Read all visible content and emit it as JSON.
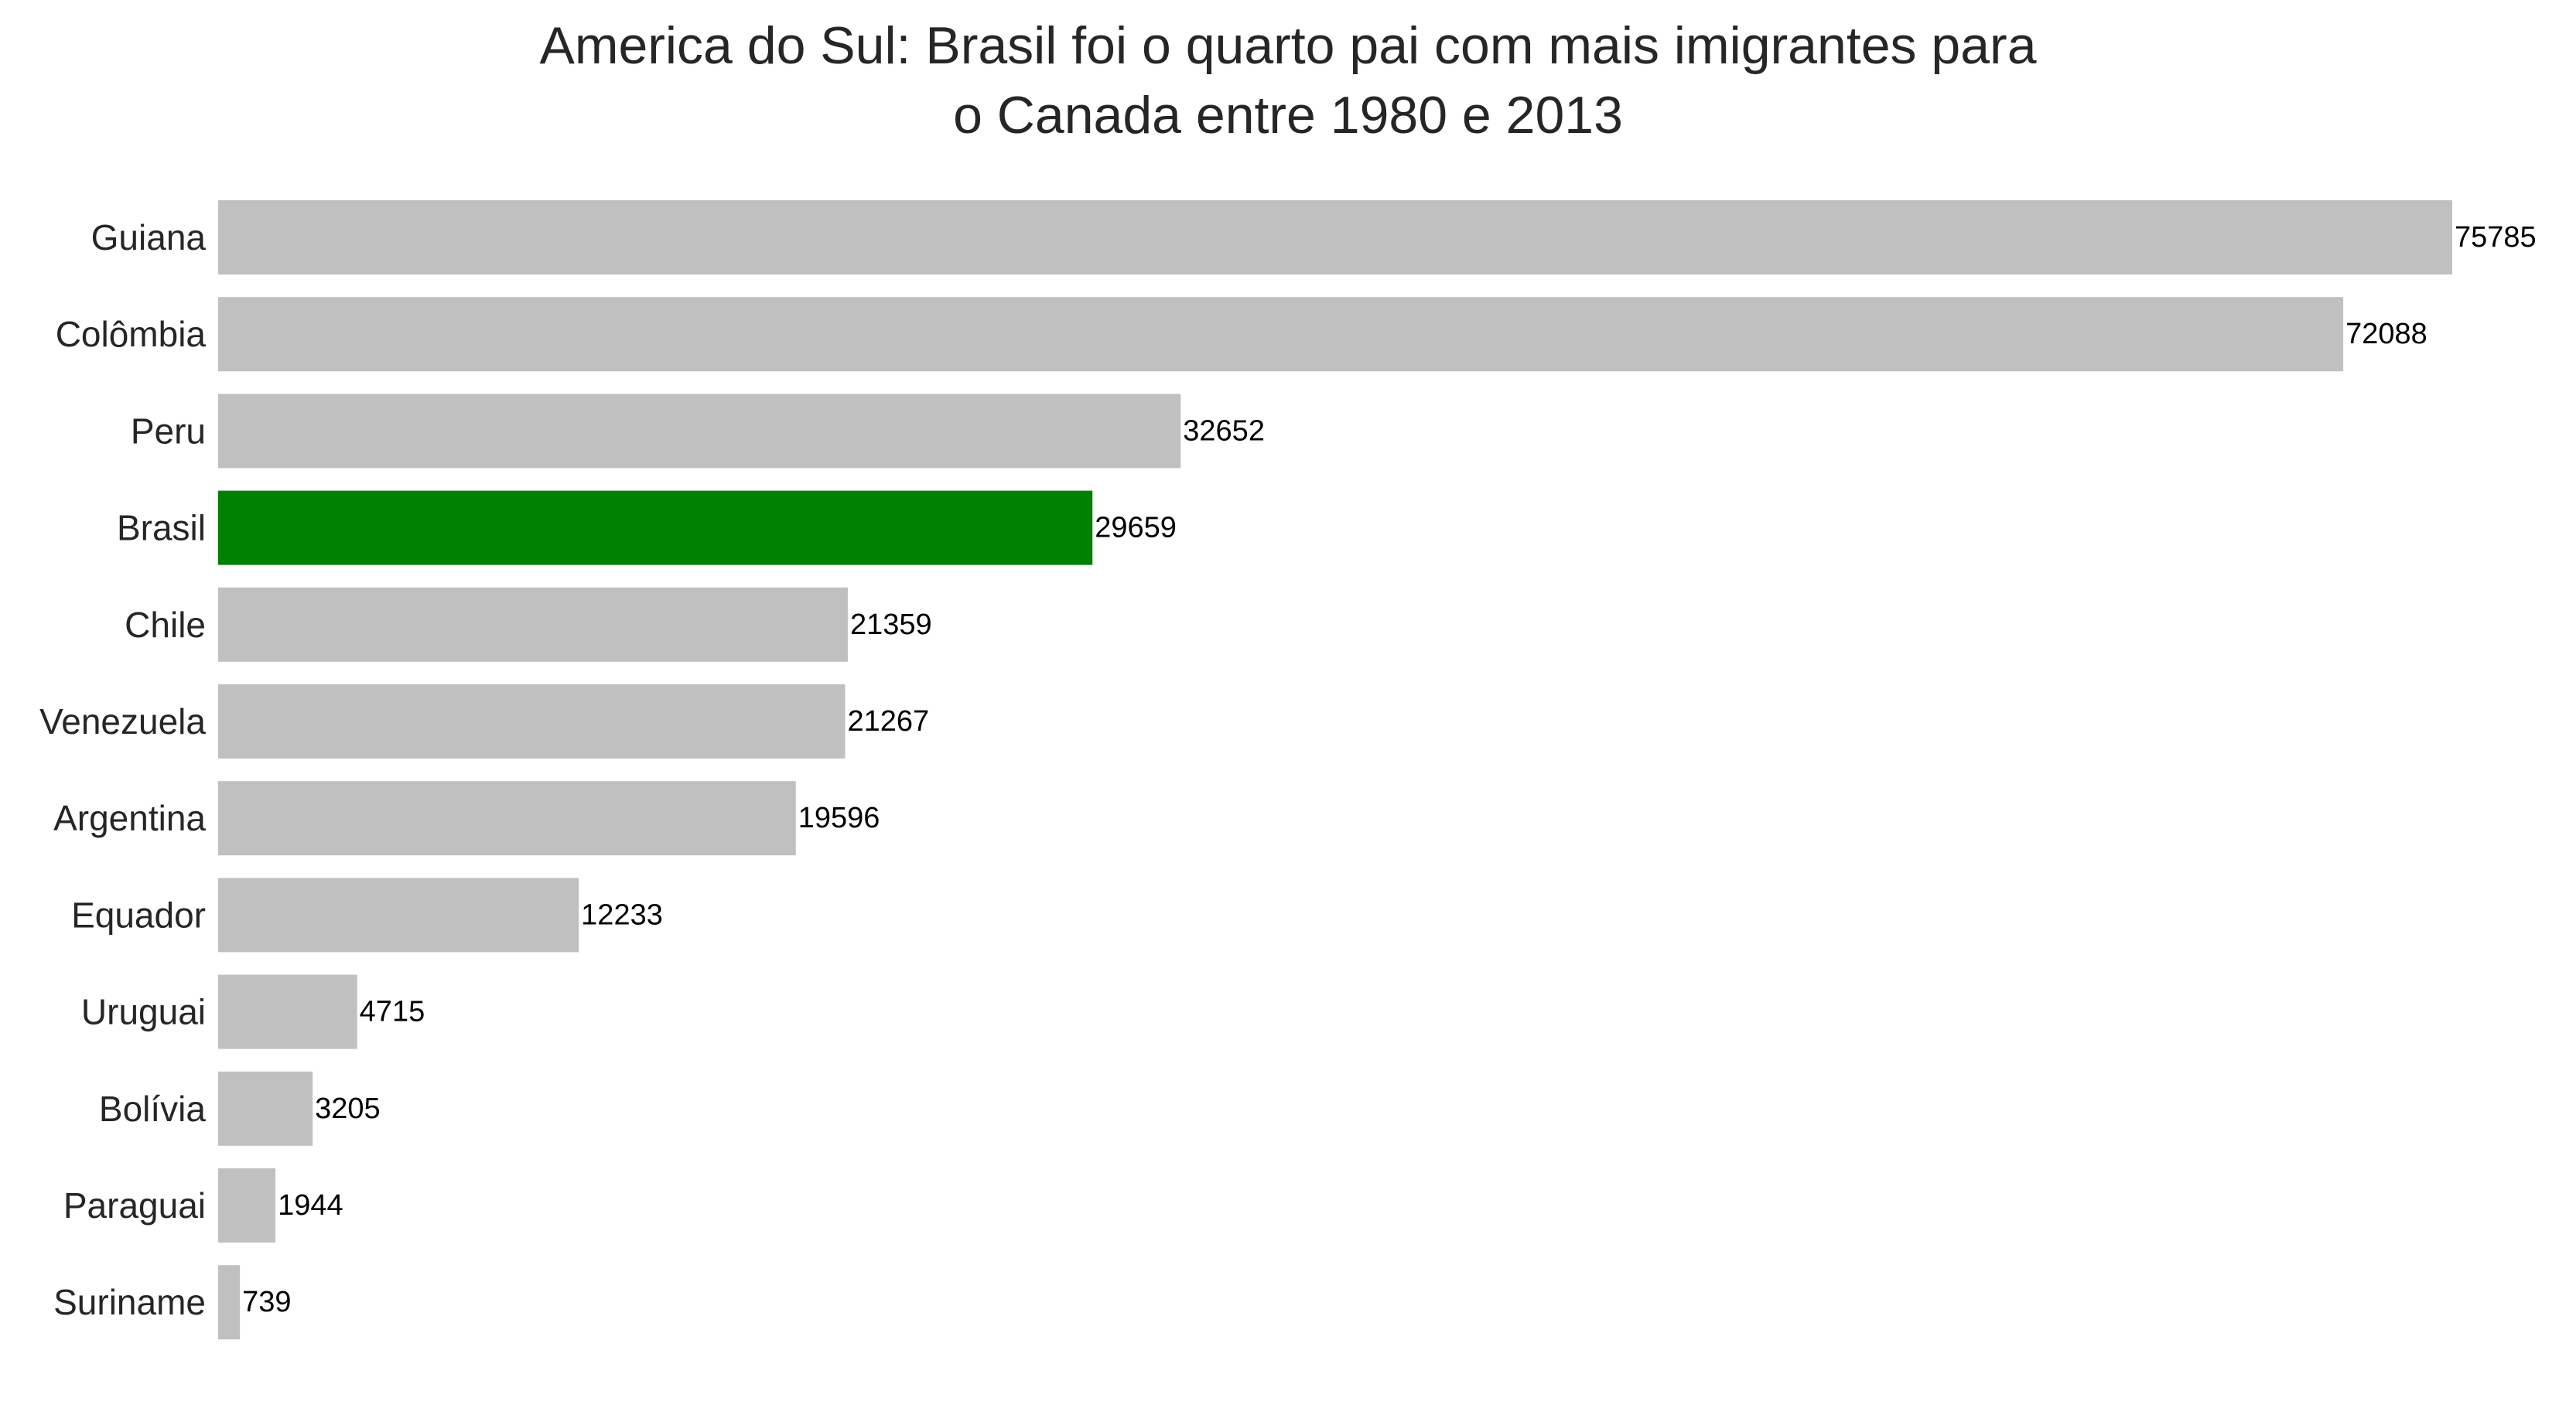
{
  "chart_data": {
    "type": "bar",
    "orientation": "horizontal",
    "title_lines": [
      "America do Sul: Brasil foi o quarto pai com mais imigrantes para",
      "o Canada entre 1980 e 2013"
    ],
    "categories": [
      "Guiana",
      "Colômbia",
      "Peru",
      "Brasil",
      "Chile",
      "Venezuela",
      "Argentina",
      "Equador",
      "Uruguai",
      "Bolívia",
      "Paraguai",
      "Suriname"
    ],
    "values": [
      75785,
      72088,
      32652,
      29659,
      21359,
      21267,
      19596,
      12233,
      4715,
      3205,
      1944,
      739
    ],
    "data_labels": [
      "75785",
      "72088",
      "32652",
      "29659",
      "21359",
      "21267",
      "19596",
      "12233",
      "4715",
      "3205",
      "1944",
      "739"
    ],
    "highlight": "Brasil",
    "xlim": [
      0,
      75785
    ],
    "xlabel": "",
    "ylabel": "",
    "grid": false,
    "colors": {
      "default": "#c0c0c0",
      "highlight": "#008000",
      "tick_label": "#262626",
      "data_label": "#000000"
    }
  }
}
